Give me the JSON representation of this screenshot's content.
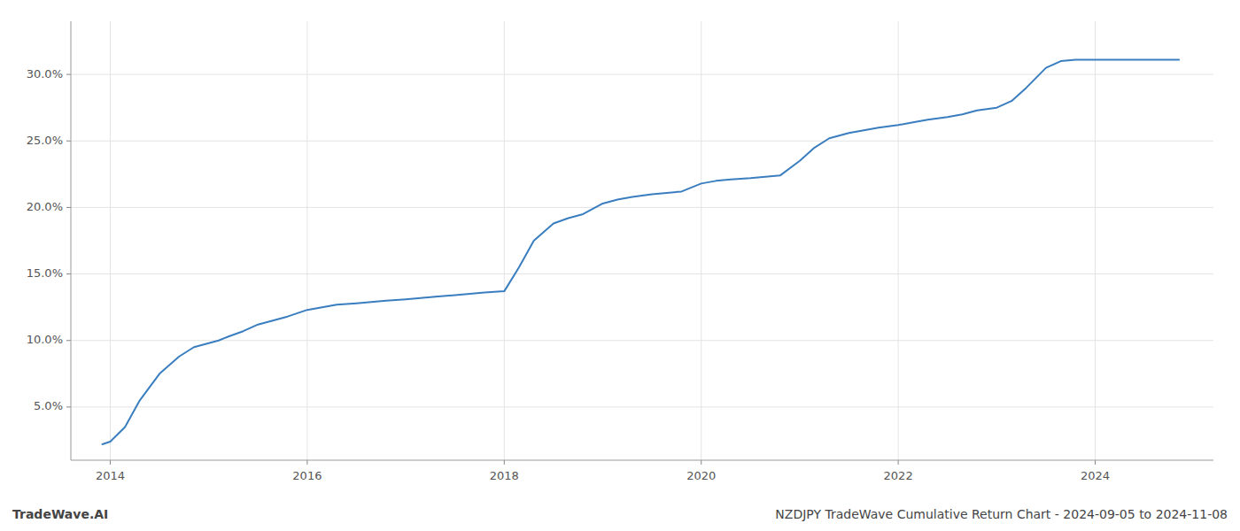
{
  "chart_data": {
    "type": "line",
    "x": [
      2013.92,
      2014.0,
      2014.15,
      2014.3,
      2014.5,
      2014.7,
      2014.85,
      2015.0,
      2015.1,
      2015.2,
      2015.35,
      2015.5,
      2015.65,
      2015.8,
      2016.0,
      2016.15,
      2016.3,
      2016.5,
      2016.65,
      2016.8,
      2017.0,
      2017.15,
      2017.3,
      2017.5,
      2017.65,
      2017.8,
      2018.0,
      2018.15,
      2018.3,
      2018.5,
      2018.65,
      2018.8,
      2019.0,
      2019.15,
      2019.3,
      2019.5,
      2019.65,
      2019.8,
      2020.0,
      2020.15,
      2020.3,
      2020.5,
      2020.65,
      2020.8,
      2021.0,
      2021.15,
      2021.3,
      2021.5,
      2021.65,
      2021.8,
      2022.0,
      2022.15,
      2022.3,
      2022.5,
      2022.65,
      2022.8,
      2023.0,
      2023.15,
      2023.3,
      2023.5,
      2023.65,
      2023.8,
      2024.0,
      2024.5,
      2024.85
    ],
    "values": [
      2.2,
      2.4,
      3.5,
      5.5,
      7.5,
      8.8,
      9.5,
      9.8,
      10.0,
      10.3,
      10.7,
      11.2,
      11.5,
      11.8,
      12.3,
      12.5,
      12.7,
      12.8,
      12.9,
      13.0,
      13.1,
      13.2,
      13.3,
      13.4,
      13.5,
      13.6,
      13.7,
      15.5,
      17.5,
      18.8,
      19.2,
      19.5,
      20.3,
      20.6,
      20.8,
      21.0,
      21.1,
      21.2,
      21.8,
      22.0,
      22.1,
      22.2,
      22.3,
      22.4,
      23.5,
      24.5,
      25.2,
      25.6,
      25.8,
      26.0,
      26.2,
      26.4,
      26.6,
      26.8,
      27.0,
      27.3,
      27.5,
      28.0,
      29.0,
      30.5,
      31.0,
      31.1,
      31.1,
      31.1,
      31.1
    ],
    "color": "#3a7ebf",
    "xlim": [
      2013.6,
      2025.2
    ],
    "ylim": [
      1.0,
      34.0
    ],
    "xticks": [
      2014,
      2016,
      2018,
      2020,
      2022,
      2024
    ],
    "yticks": [
      {
        "value": 5.0,
        "label": "5.0%"
      },
      {
        "value": 10.0,
        "label": "10.0%"
      },
      {
        "value": 15.0,
        "label": "15.0%"
      },
      {
        "value": 20.0,
        "label": "20.0%"
      },
      {
        "value": 25.0,
        "label": "25.0%"
      },
      {
        "value": 30.0,
        "label": "30.0%"
      }
    ],
    "grid": true,
    "annotations": [
      "TradeWave.AI",
      "NZDJPY TradeWave Cumulative Return Chart - 2024-09-05 to 2024-11-08"
    ]
  }
}
